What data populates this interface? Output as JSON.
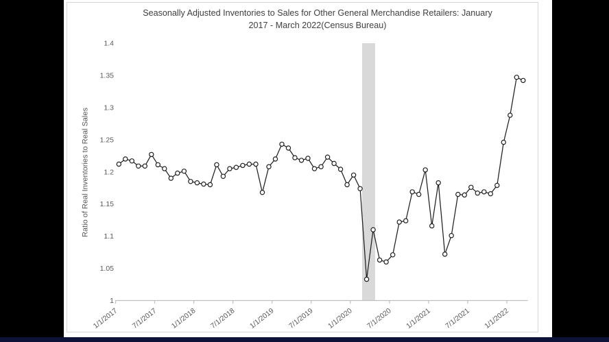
{
  "window": {
    "left_bar_color": "#000000",
    "right_bar_color": "#000000",
    "bottom_strip_color": "#0e1238",
    "page_background": "#ffffff"
  },
  "chart": {
    "title_line1": "Seasonally Adjusted Inventories to Sales for Other General Merchandise Retailers: January",
    "title_line2": "2017 - March 2022(Census Bureau)",
    "y_axis_title": "Ratio of Real Inventories to Real Sales"
  },
  "chart_data": {
    "type": "line",
    "title": "Seasonally Adjusted Inventories to Sales for Other General Merchandise Retailers: January 2017 - March 2022(Census Bureau)",
    "xlabel": "",
    "ylabel": "Ratio of Real Inventories to Real Sales",
    "ylim": [
      1.0,
      1.4
    ],
    "grid": "off",
    "legend": "none",
    "marker": "open-circle",
    "line_color": "#1f1f1f",
    "marker_fill": "#ffffff",
    "axis_color": "#bfbfbf",
    "label_color": "#595959",
    "y_ticks": [
      "1.4",
      "1.35",
      "1.3",
      "1.25",
      "1.2",
      "1.15",
      "1.1",
      "1.05",
      "1"
    ],
    "x_tick_labels": [
      "1/1/2017",
      "7/1/2017",
      "1/1/2018",
      "7/1/2018",
      "1/1/2019",
      "7/1/2019",
      "1/1/2020",
      "7/1/2020",
      "1/1/2021",
      "7/1/2021",
      "1/1/2022"
    ],
    "recession_band": {
      "from_index": 37.3,
      "to_index": 39.3,
      "color": "#d9d9d9",
      "note": "gray shaded vertical band (early-2020 recession)"
    },
    "x": [
      "1/2017",
      "2/2017",
      "3/2017",
      "4/2017",
      "5/2017",
      "6/2017",
      "7/2017",
      "8/2017",
      "9/2017",
      "10/2017",
      "11/2017",
      "12/2017",
      "1/2018",
      "2/2018",
      "3/2018",
      "4/2018",
      "5/2018",
      "6/2018",
      "7/2018",
      "8/2018",
      "9/2018",
      "10/2018",
      "11/2018",
      "12/2018",
      "1/2019",
      "2/2019",
      "3/2019",
      "4/2019",
      "5/2019",
      "6/2019",
      "7/2019",
      "8/2019",
      "9/2019",
      "10/2019",
      "11/2019",
      "12/2019",
      "1/2020",
      "2/2020",
      "3/2020",
      "4/2020",
      "5/2020",
      "6/2020",
      "7/2020",
      "8/2020",
      "9/2020",
      "10/2020",
      "11/2020",
      "12/2020",
      "1/2021",
      "2/2021",
      "3/2021",
      "4/2021",
      "5/2021",
      "6/2021",
      "7/2021",
      "8/2021",
      "9/2021",
      "10/2021",
      "11/2021",
      "12/2021",
      "1/2022",
      "2/2022",
      "3/2022"
    ],
    "values": [
      1.212,
      1.22,
      1.217,
      1.209,
      1.209,
      1.227,
      1.211,
      1.205,
      1.19,
      1.198,
      1.201,
      1.185,
      1.183,
      1.181,
      1.18,
      1.211,
      1.193,
      1.205,
      1.207,
      1.21,
      1.212,
      1.212,
      1.168,
      1.208,
      1.22,
      1.243,
      1.237,
      1.222,
      1.218,
      1.221,
      1.205,
      1.208,
      1.223,
      1.213,
      1.204,
      1.18,
      1.195,
      1.174,
      1.033,
      1.11,
      1.063,
      1.06,
      1.071,
      1.122,
      1.124,
      1.169,
      1.165,
      1.203,
      1.116,
      1.183,
      1.072,
      1.101,
      1.165,
      1.164,
      1.176,
      1.167,
      1.169,
      1.166,
      1.179,
      1.246,
      1.288,
      1.347,
      1.342
    ]
  }
}
